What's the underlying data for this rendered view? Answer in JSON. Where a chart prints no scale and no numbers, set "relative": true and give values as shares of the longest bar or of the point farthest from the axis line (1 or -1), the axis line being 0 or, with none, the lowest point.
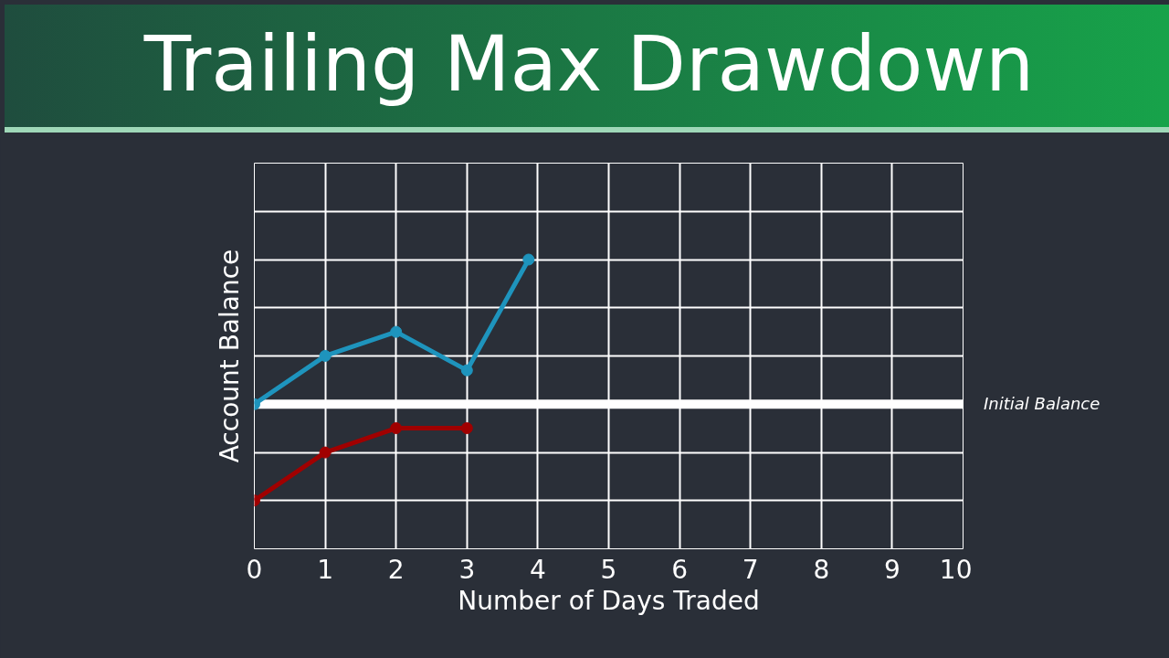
{
  "chart_data": {
    "type": "line",
    "title": "Trailing Max Drawdown",
    "xlabel": "Number of Days Traded",
    "ylabel": "Account Balance",
    "relative": true,
    "xlim": [
      0,
      10
    ],
    "xticks": [
      0,
      1,
      2,
      3,
      4,
      5,
      6,
      7,
      8,
      9,
      10
    ],
    "grid": true,
    "marker": "circle",
    "line_style": "solid",
    "series": [
      {
        "color": "#1e94bd",
        "x": [
          0,
          1,
          2,
          3,
          3.87
        ],
        "values": [
          0.5,
          0.667,
          0.75,
          0.617,
          1.0
        ]
      },
      {
        "color": "#a00000",
        "x": [
          0,
          1,
          2,
          3
        ],
        "values": [
          0.167,
          0.333,
          0.417,
          0.417
        ]
      }
    ],
    "ref_lines": [
      {
        "axis": "y",
        "value": 0.5,
        "label": "Initial Balance",
        "color": "#ffffff"
      }
    ]
  }
}
